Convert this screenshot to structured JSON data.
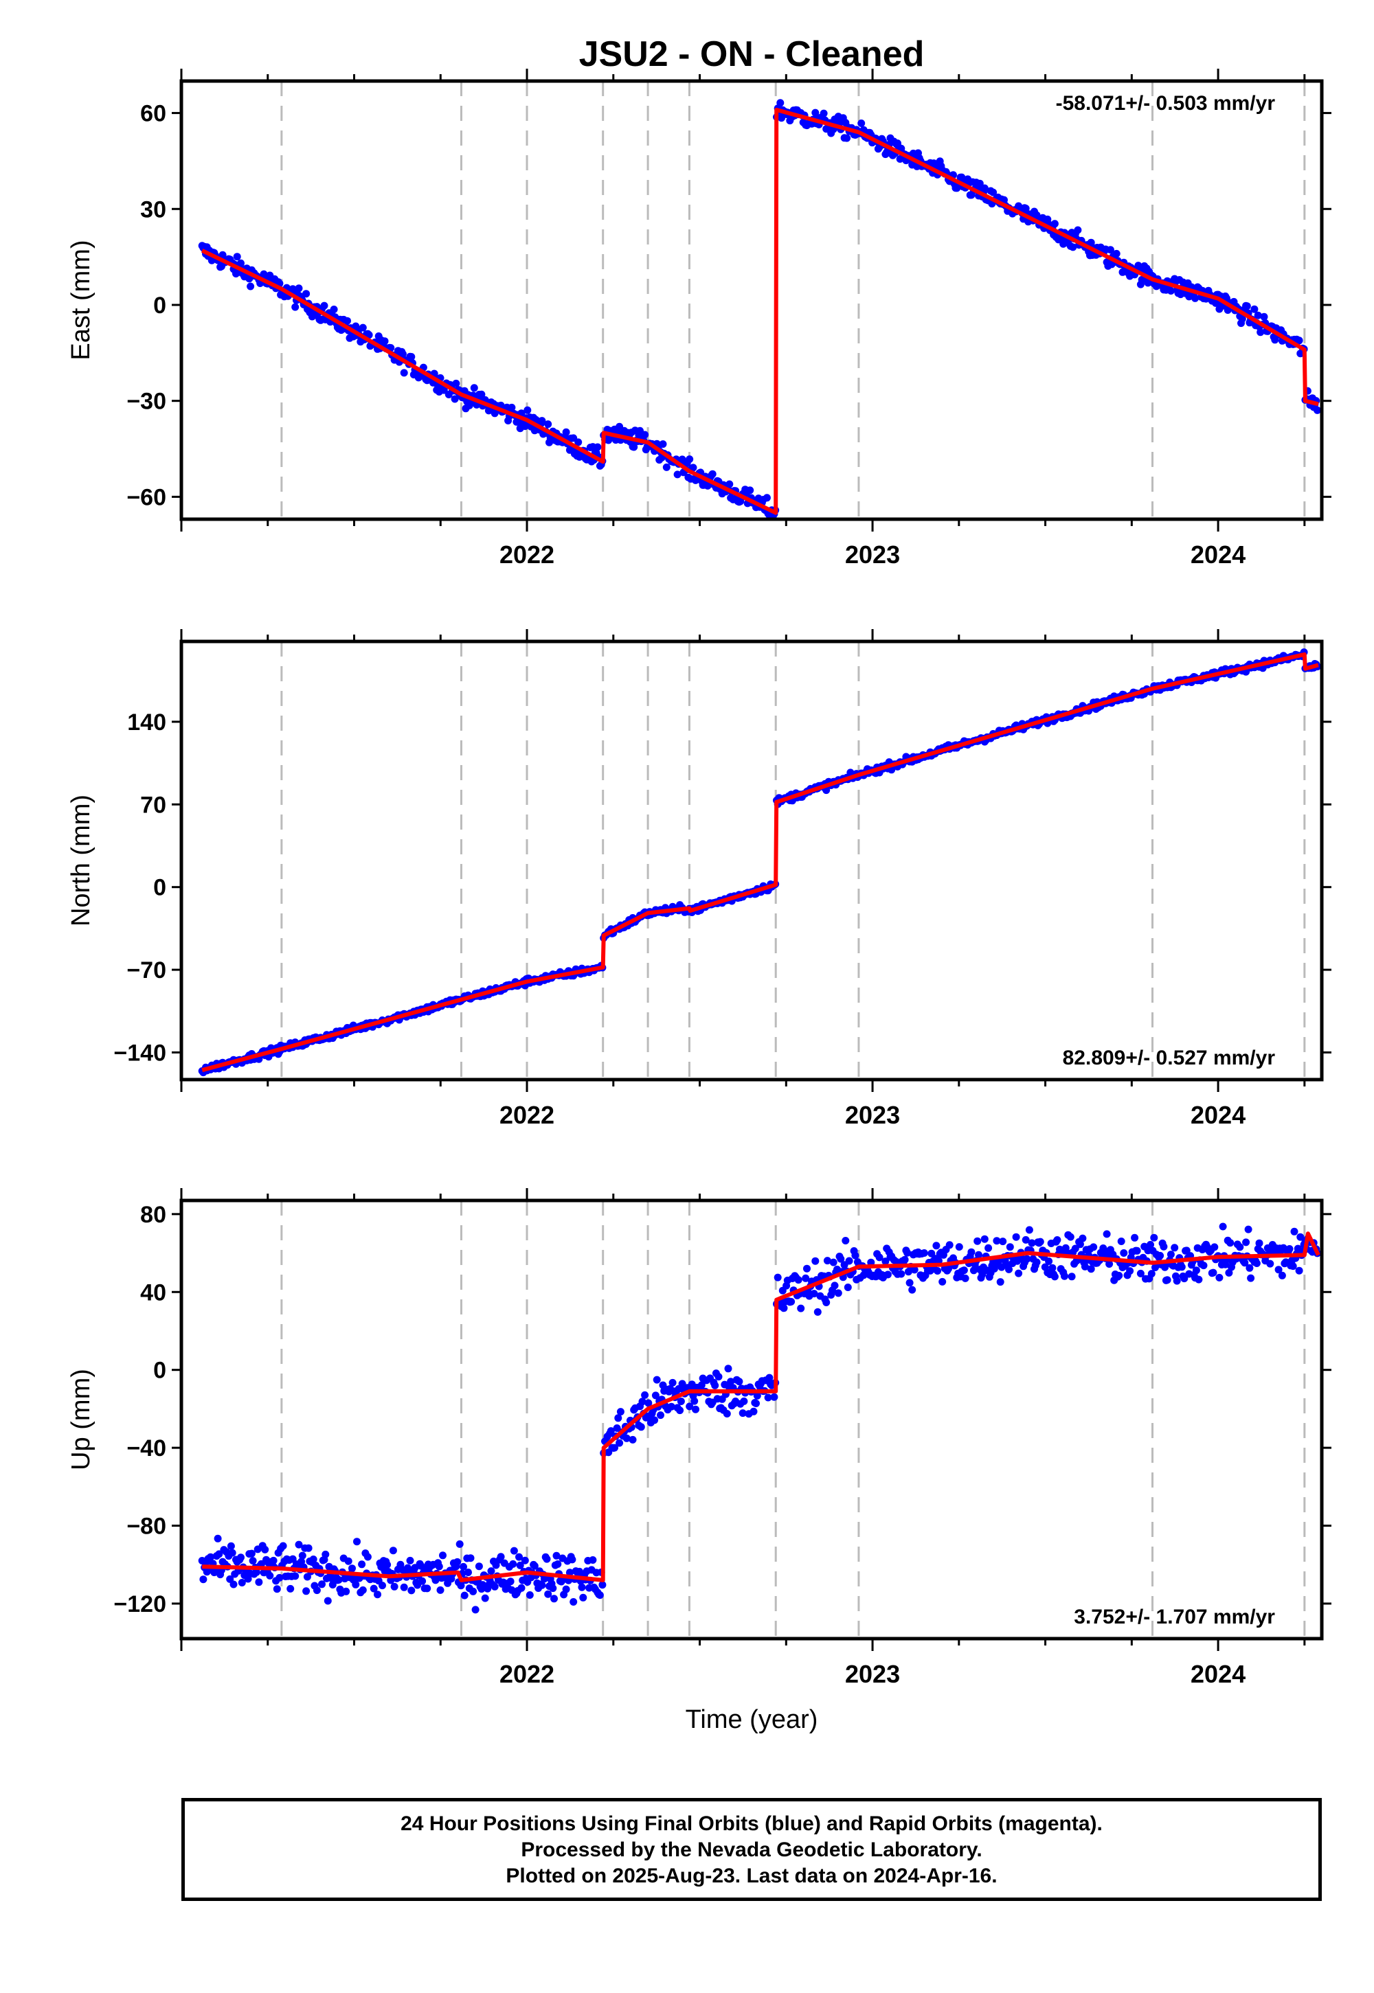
{
  "chart_data": {
    "type": "scatter",
    "title": "JSU2  - ON - Cleaned",
    "xlabel": "Time (year)",
    "x_range": [
      2021.0,
      2024.3
    ],
    "x_ticks": [
      2022,
      2023,
      2024
    ],
    "event_lines": [
      2021.29,
      2021.81,
      2022.0,
      2022.22,
      2022.35,
      2022.47,
      2022.72,
      2022.96,
      2023.81,
      2024.25
    ],
    "series_colors": {
      "data": "#0000ff",
      "model": "#ff0000"
    },
    "panels": [
      {
        "name": "east",
        "ylabel": "East (mm)",
        "ylim": [
          -67,
          70
        ],
        "y_ticks": [
          -60,
          -30,
          0,
          30,
          60
        ],
        "rate_label": "-58.071+/- 0.503 mm/yr",
        "rate_position": "top-right",
        "noise": 1.5,
        "model": [
          [
            2021.06,
            17
          ],
          [
            2021.29,
            5
          ],
          [
            2021.81,
            -28
          ],
          [
            2022.0,
            -36
          ],
          [
            2022.22,
            -49
          ],
          [
            2022.222,
            -40
          ],
          [
            2022.35,
            -43
          ],
          [
            2022.47,
            -52
          ],
          [
            2022.72,
            -65
          ],
          [
            2022.722,
            61
          ],
          [
            2022.96,
            54
          ],
          [
            2023.81,
            8
          ],
          [
            2024.0,
            2
          ],
          [
            2024.25,
            -14
          ],
          [
            2024.252,
            -30
          ],
          [
            2024.29,
            -31
          ]
        ]
      },
      {
        "name": "north",
        "ylabel": "North (mm)",
        "ylim": [
          -163,
          208
        ],
        "y_ticks": [
          -140,
          -70,
          0,
          70,
          140
        ],
        "rate_label": "82.809+/- 0.527 mm/yr",
        "rate_position": "bottom-right",
        "noise": 1.5,
        "model": [
          [
            2021.06,
            -155
          ],
          [
            2021.29,
            -137
          ],
          [
            2022.0,
            -80
          ],
          [
            2022.22,
            -68
          ],
          [
            2022.222,
            -41
          ],
          [
            2022.35,
            -22
          ],
          [
            2022.47,
            -18
          ],
          [
            2022.472,
            -20
          ],
          [
            2022.72,
            2
          ],
          [
            2022.722,
            72
          ],
          [
            2022.96,
            95
          ],
          [
            2023.81,
            168
          ],
          [
            2024.25,
            197
          ],
          [
            2024.252,
            185
          ],
          [
            2024.29,
            188
          ]
        ]
      },
      {
        "name": "up",
        "ylabel": "Up (mm)",
        "ylim": [
          -138,
          87
        ],
        "y_ticks": [
          -120,
          -80,
          -40,
          0,
          40,
          80
        ],
        "rate_label": "3.752+/- 1.707 mm/yr",
        "rate_position": "bottom-right",
        "noise": 6,
        "model": [
          [
            2021.06,
            -101
          ],
          [
            2021.29,
            -102
          ],
          [
            2021.6,
            -106
          ],
          [
            2021.8,
            -104
          ],
          [
            2021.81,
            -108
          ],
          [
            2022.0,
            -104
          ],
          [
            2022.22,
            -108
          ],
          [
            2022.222,
            -40
          ],
          [
            2022.35,
            -20
          ],
          [
            2022.47,
            -11
          ],
          [
            2022.72,
            -11
          ],
          [
            2022.722,
            36
          ],
          [
            2022.96,
            53
          ],
          [
            2023.2,
            54
          ],
          [
            2023.45,
            60
          ],
          [
            2023.81,
            55
          ],
          [
            2024.0,
            58
          ],
          [
            2024.25,
            59
          ],
          [
            2024.26,
            70
          ],
          [
            2024.29,
            59
          ]
        ]
      }
    ]
  },
  "footer": {
    "line1": "24 Hour Positions Using Final Orbits (blue) and Rapid Orbits (magenta).",
    "line2": "Processed by the Nevada Geodetic Laboratory.",
    "line3": "Plotted on 2025-Aug-23. Last data on 2024-Apr-16."
  }
}
